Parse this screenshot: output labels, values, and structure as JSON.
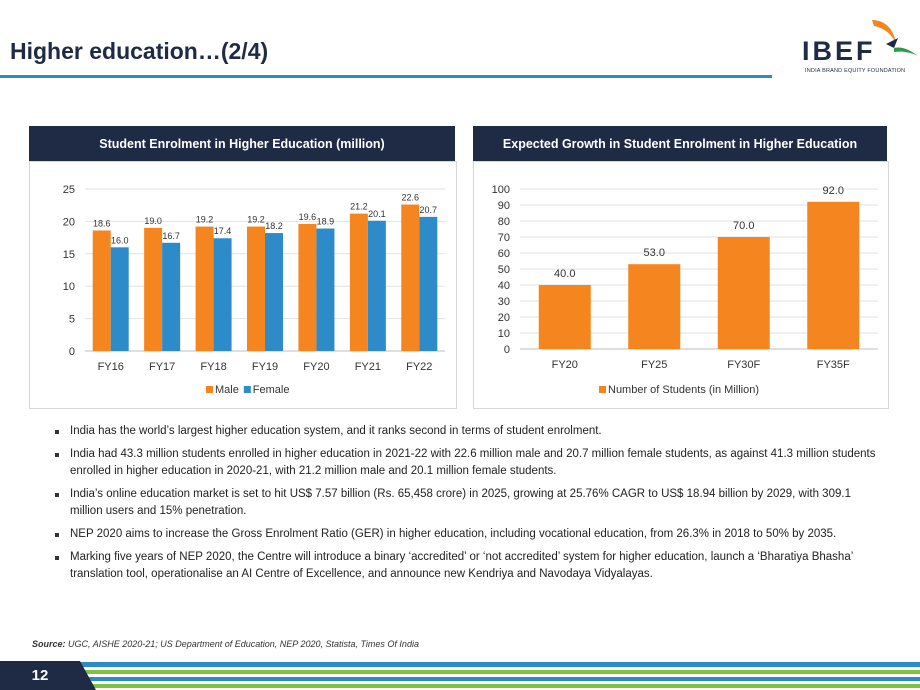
{
  "header": {
    "title": "Higher education…(2/4)"
  },
  "logo": {
    "name": "IBEF",
    "tagline": "INDIA BRAND EQUITY FOUNDATION"
  },
  "colors": {
    "navy": "#1f2a44",
    "orange": "#f5861f",
    "blue": "#2e8bc9",
    "grid": "#e2e2e2"
  },
  "chart_data": [
    {
      "type": "bar",
      "title": "Student Enrolment in Higher Education (million)",
      "categories": [
        "FY16",
        "FY17",
        "FY18",
        "FY19",
        "FY20",
        "FY21",
        "FY22"
      ],
      "series": [
        {
          "name": "Male",
          "values": [
            18.6,
            19.0,
            19.2,
            19.2,
            19.6,
            21.2,
            22.6
          ],
          "labels": [
            "18.6",
            "19.0",
            "19.2",
            "19.2",
            "19.6",
            "21.2",
            "22.6"
          ],
          "color": "#f5861f"
        },
        {
          "name": "Female",
          "values": [
            16.0,
            16.7,
            17.4,
            18.2,
            18.9,
            20.1,
            20.7
          ],
          "labels": [
            "16.0",
            "16.7",
            "17.4",
            "18.2",
            "18.9",
            "20.1",
            "20.7"
          ],
          "color": "#2e8bc9"
        }
      ],
      "ylim": [
        0,
        25
      ],
      "yticks": [
        "0",
        "5",
        "10",
        "15",
        "20",
        "25"
      ],
      "grid": true,
      "legend": "bottom"
    },
    {
      "type": "bar",
      "title": "Expected Growth in Student Enrolment in Higher Education",
      "categories": [
        "FY20",
        "FY25",
        "FY30F",
        "FY35F"
      ],
      "series": [
        {
          "name": "Number of Students (in Million)",
          "values": [
            40.0,
            53.0,
            70.0,
            92.0
          ],
          "labels": [
            "40.0",
            "53.0",
            "70.0",
            "92.0"
          ],
          "color": "#f5861f"
        }
      ],
      "ylim": [
        0,
        100
      ],
      "yticks": [
        "0",
        "10",
        "20",
        "30",
        "40",
        "50",
        "60",
        "70",
        "80",
        "90",
        "100"
      ],
      "grid": true,
      "legend": "bottom"
    }
  ],
  "bullets": [
    "India has the world’s largest higher education system, and it ranks second in terms of student enrolment.",
    "India had 43.3 million students enrolled in higher education in 2021-22 with 22.6 million male and 20.7 million female students, as against 41.3 million students enrolled in higher education in 2020-21, with 21.2 million male and 20.1 million female students.",
    "India’s online education market is set to hit US$ 7.57 billion (Rs. 65,458 crore) in 2025, growing at 25.76% CAGR to US$ 18.94 billion by 2029, with 309.1 million users and 15% penetration.",
    "NEP 2020 aims to increase the Gross Enrolment Ratio (GER) in higher education, including vocational education, from 26.3% in 2018 to 50% by 2035.",
    "Marking five years of NEP 2020, the Centre will introduce a binary ‘accredited’ or ‘not accredited’ system for higher education, launch a ‘Bharatiya Bhasha’ translation tool, operationalise an AI Centre of Excellence, and announce new Kendriya and Navodaya Vidyalayas."
  ],
  "source": {
    "label": "Source:",
    "text": "UGC, AISHE 2020-21; US Department of Education, NEP 2020, Statista, Times Of India"
  },
  "footer": {
    "page_number": "12"
  }
}
